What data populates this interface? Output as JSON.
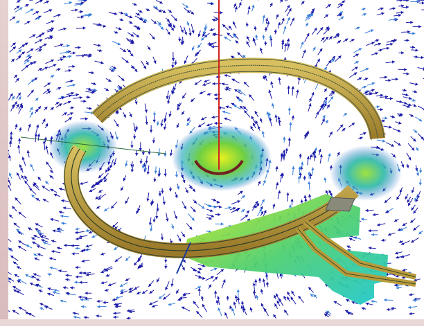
{
  "image": {
    "subject": "electromagnetic-field-simulation-render",
    "colors": {
      "background": "#ffffff",
      "field_arrows": "#1a1aa8",
      "field_arrows_light": "#3a7fd8",
      "coil_copper": "#b89a3a",
      "coil_stripes": "#4a5a3a",
      "substrate_hot": "#a8e020",
      "substrate_cold": "#20d0c0",
      "probe_line": "#d02020",
      "inner_arc": "#702020",
      "frame": "#e2c8c8"
    }
  }
}
